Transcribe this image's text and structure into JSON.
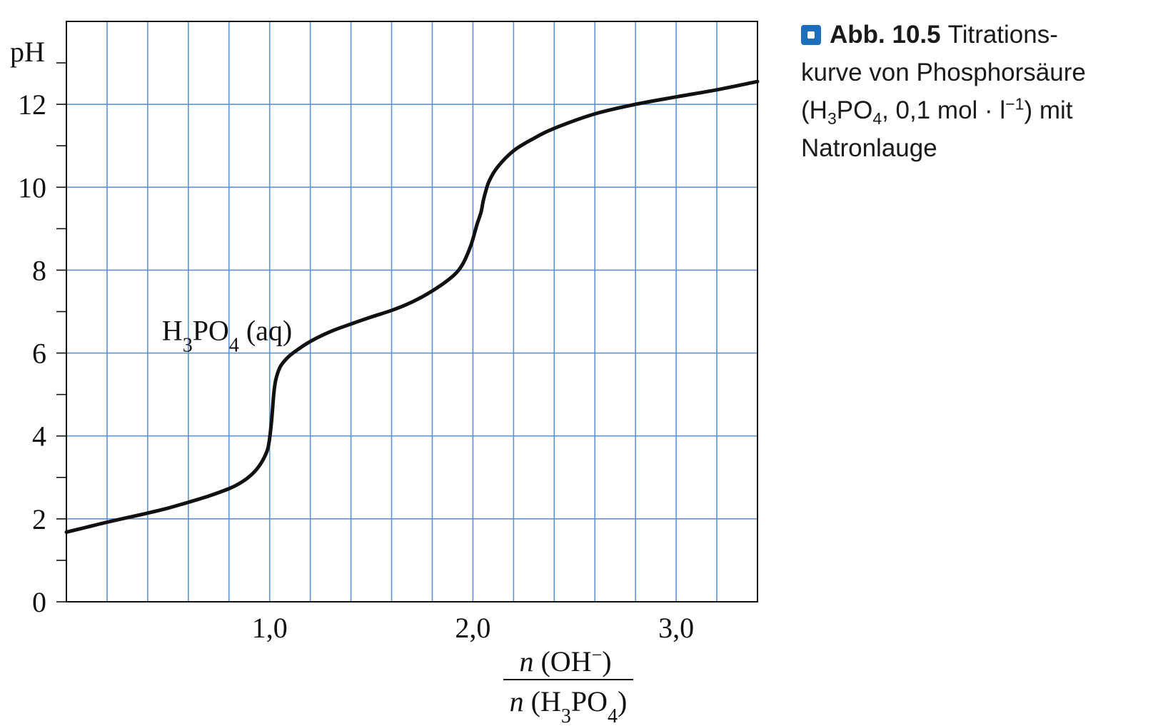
{
  "caption": {
    "number": "Abb. 10.5",
    "line1": "Titrations-",
    "line2": "kurve von Phosphorsäure",
    "line3_a": "(H",
    "line3_sub1": "3",
    "line3_b": "PO",
    "line3_sub2": "4",
    "line3_c": ", 0,1 mol · l",
    "line3_sup": "−1",
    "line3_d": ") mit",
    "line4": "Natronlauge",
    "accent_color": "#1b6fbd"
  },
  "chart_data": {
    "type": "line",
    "ylabel": "pH",
    "xlabel_numerator_a": "n",
    "xlabel_numerator_b": " (OH",
    "xlabel_numerator_sup": "−",
    "xlabel_numerator_c": ")",
    "xlabel_denominator_a": "n",
    "xlabel_denominator_b": " (H",
    "xlabel_denominator_sub1": "3",
    "xlabel_denominator_c": "PO",
    "xlabel_denominator_sub2": "4",
    "xlabel_denominator_d": ")",
    "xlim": [
      0,
      3.4
    ],
    "ylim": [
      0,
      14
    ],
    "grid": true,
    "grid_color": "#5b93d6",
    "x_ticks": [
      {
        "value": 1.0,
        "label": "1,0"
      },
      {
        "value": 2.0,
        "label": "2,0"
      },
      {
        "value": 3.0,
        "label": "3,0"
      }
    ],
    "y_ticks": [
      {
        "value": 0,
        "label": "0"
      },
      {
        "value": 2,
        "label": "2"
      },
      {
        "value": 4,
        "label": "4"
      },
      {
        "value": 6,
        "label": "6"
      },
      {
        "value": 8,
        "label": "8"
      },
      {
        "value": 10,
        "label": "10"
      },
      {
        "value": 12,
        "label": "12"
      }
    ],
    "annotation": {
      "a": "H",
      "sub1": "3",
      "b": "PO",
      "sub2": "4",
      "c": " (aq)",
      "x": 0.47,
      "y": 6.55
    },
    "series": [
      {
        "line_color": "#111111",
        "x": [
          0.0,
          0.1,
          0.2,
          0.3,
          0.4,
          0.5,
          0.6,
          0.7,
          0.8,
          0.85,
          0.9,
          0.94,
          0.97,
          0.99,
          1.0,
          1.01,
          1.02,
          1.03,
          1.05,
          1.08,
          1.12,
          1.2,
          1.3,
          1.4,
          1.5,
          1.6,
          1.7,
          1.8,
          1.9,
          1.95,
          1.99,
          2.02,
          2.04,
          2.05,
          2.06,
          2.08,
          2.12,
          2.2,
          2.3,
          2.4,
          2.6,
          2.8,
          3.0,
          3.2,
          3.4
        ],
        "y": [
          1.68,
          1.8,
          1.92,
          2.03,
          2.14,
          2.26,
          2.4,
          2.55,
          2.73,
          2.85,
          3.02,
          3.22,
          3.45,
          3.68,
          3.95,
          4.4,
          5.0,
          5.35,
          5.65,
          5.85,
          6.02,
          6.28,
          6.52,
          6.7,
          6.87,
          7.03,
          7.23,
          7.5,
          7.85,
          8.15,
          8.6,
          9.1,
          9.4,
          9.65,
          9.85,
          10.15,
          10.48,
          10.88,
          11.18,
          11.42,
          11.77,
          12.0,
          12.18,
          12.35,
          12.55
        ]
      }
    ]
  }
}
